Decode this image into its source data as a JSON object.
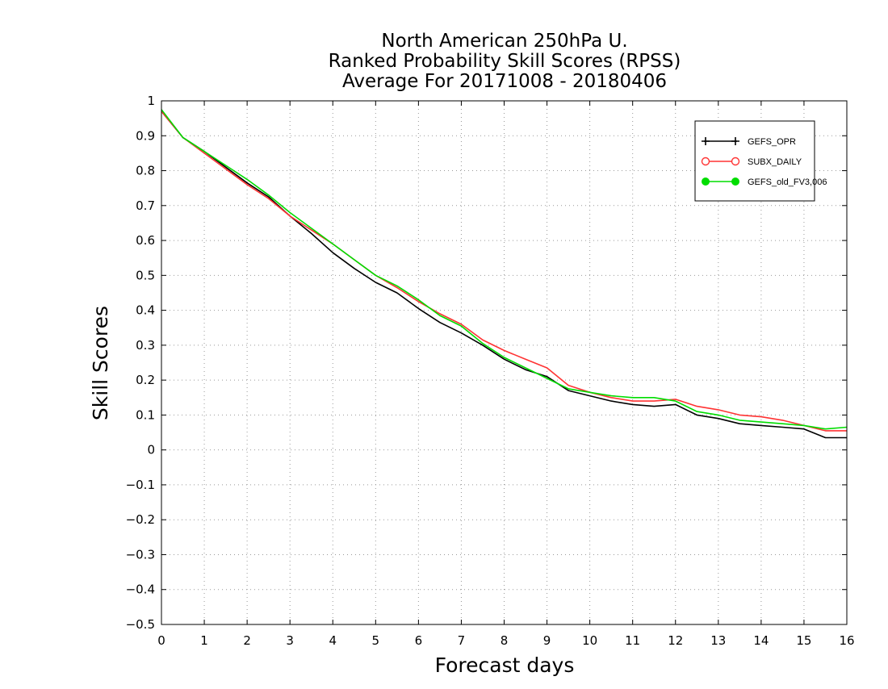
{
  "chart_data": {
    "type": "line",
    "title": [
      "North American 250hPa U.",
      "Ranked Probability Skill Scores (RPSS)",
      "Average For 20171008 - 20180406"
    ],
    "xlabel": "Forecast days",
    "ylabel": "Skill Scores",
    "xlim": [
      0,
      16
    ],
    "ylim": [
      -0.5,
      1
    ],
    "xticks": [
      0,
      1,
      2,
      3,
      4,
      5,
      6,
      7,
      8,
      9,
      10,
      11,
      12,
      13,
      14,
      15,
      16
    ],
    "yticks": [
      -0.5,
      -0.4,
      -0.3,
      -0.2,
      -0.1,
      0,
      0.1,
      0.2,
      0.3,
      0.4,
      0.5,
      0.6,
      0.7,
      0.8,
      0.9,
      1
    ],
    "grid": true,
    "legend_position": "top-right",
    "x": [
      0,
      0.5,
      1,
      1.5,
      2,
      2.5,
      3,
      3.5,
      4,
      4.5,
      5,
      5.5,
      6,
      6.5,
      7,
      7.5,
      8,
      8.5,
      9,
      9.5,
      10,
      10.5,
      11,
      11.5,
      12,
      12.5,
      13,
      13.5,
      14,
      14.5,
      15,
      15.5,
      16
    ],
    "series": [
      {
        "name": "GEFS_OPR",
        "color": "#000000",
        "marker": "plus",
        "values": [
          0.97,
          0.895,
          0.855,
          0.81,
          0.765,
          0.725,
          0.67,
          0.62,
          0.565,
          0.52,
          0.48,
          0.45,
          0.405,
          0.365,
          0.335,
          0.3,
          0.26,
          0.23,
          0.21,
          0.17,
          0.155,
          0.14,
          0.13,
          0.125,
          0.13,
          0.1,
          0.09,
          0.075,
          0.07,
          0.065,
          0.06,
          0.035,
          0.035
        ]
      },
      {
        "name": "SUBX_DAILY",
        "color": "#ff3333",
        "marker": "open-circle",
        "values": [
          0.97,
          0.895,
          0.85,
          0.805,
          0.76,
          0.72,
          0.67,
          0.63,
          0.59,
          0.545,
          0.5,
          0.465,
          0.425,
          0.39,
          0.36,
          0.315,
          0.285,
          0.26,
          0.235,
          0.185,
          0.165,
          0.15,
          0.14,
          0.14,
          0.145,
          0.125,
          0.115,
          0.1,
          0.095,
          0.085,
          0.07,
          0.055,
          0.055
        ]
      },
      {
        "name": "GEFS_old_FV3,006",
        "color": "#00dd00",
        "marker": "filled-circle",
        "values": [
          0.975,
          0.895,
          0.855,
          0.815,
          0.775,
          0.73,
          0.68,
          0.635,
          0.59,
          0.545,
          0.5,
          0.47,
          0.43,
          0.385,
          0.355,
          0.305,
          0.265,
          0.235,
          0.205,
          0.175,
          0.165,
          0.155,
          0.15,
          0.15,
          0.14,
          0.11,
          0.1,
          0.085,
          0.08,
          0.075,
          0.07,
          0.06,
          0.065
        ]
      }
    ]
  }
}
